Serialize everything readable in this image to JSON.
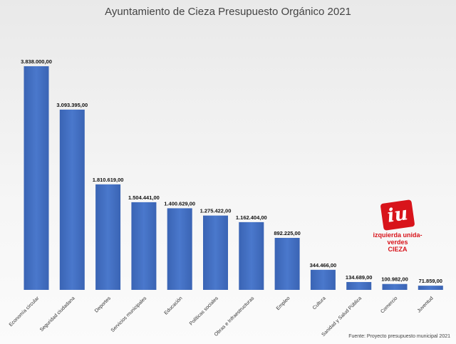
{
  "chart_data": {
    "type": "bar",
    "title": "Ayuntamiento de Cieza Presupuesto Orgánico 2021",
    "categories": [
      "Economía circular",
      "Seguridad ciudadana",
      "Deportes",
      "Servicios municipales",
      "Educación",
      "Políticas sociales",
      "Obras e Infraestructuras",
      "Empleo",
      "Cultura",
      "Sanidad y Salud Pública",
      "Comercio",
      "Juventud"
    ],
    "values": [
      3838000,
      3093395,
      1810619,
      1504441,
      1400629,
      1275422,
      1162404,
      892225,
      344466,
      134689,
      100982,
      71859
    ],
    "value_labels": [
      "3.838.000,00",
      "3.093.395,00",
      "1.810.619,00",
      "1.504.441,00",
      "1.400.629,00",
      "1.275.422,00",
      "1.162.404,00",
      "892.225,00",
      "344.466,00",
      "134.689,00",
      "100.982,00",
      "71.859,00"
    ],
    "xlabel": "",
    "ylabel": "",
    "ylim": [
      0,
      3838000
    ],
    "grid": false,
    "bar_color": "#4472c4"
  },
  "source": "Fuente: Proyecto presupuesto municipal 2021",
  "logo": {
    "text": "izquierda unida-verdes",
    "city": "CIEZA",
    "mark": "iu",
    "color": "#d8141b"
  }
}
